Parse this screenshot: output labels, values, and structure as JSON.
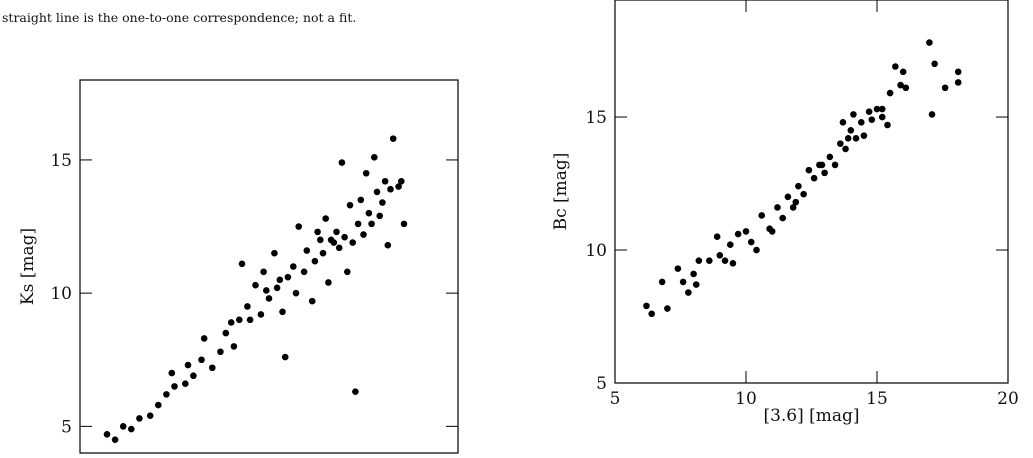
{
  "caption": "straight line is the one-to-one correspondence; not a fit.",
  "chart_data": [
    {
      "type": "scatter",
      "ylabel": "Ks [mag]",
      "color": "#000000",
      "xlim": [
        4,
        18
      ],
      "ylim": [
        4,
        18
      ],
      "yticks": [
        5,
        10,
        15
      ],
      "x": [
        5.0,
        5.3,
        5.6,
        5.9,
        6.2,
        6.6,
        6.9,
        7.2,
        7.5,
        7.4,
        7.9,
        8.2,
        8.5,
        8.6,
        8.9,
        9.2,
        9.4,
        9.7,
        9.9,
        10.0,
        10.2,
        10.3,
        10.5,
        10.7,
        10.8,
        11.0,
        11.2,
        11.3,
        11.5,
        11.6,
        11.7,
        11.9,
        12.0,
        12.1,
        12.3,
        12.4,
        12.6,
        12.7,
        12.9,
        13.0,
        13.1,
        13.2,
        13.4,
        13.5,
        13.6,
        13.7,
        13.8,
        13.9,
        14.0,
        14.1,
        14.2,
        14.3,
        14.4,
        14.5,
        14.6,
        14.7,
        14.8,
        14.9,
        15.0,
        15.1,
        15.2,
        15.3,
        15.4,
        15.5,
        15.6,
        15.8,
        15.9,
        16.0,
        12.8,
        13.3,
        11.4,
        10.9,
        9.6,
        8.0
      ],
      "values": [
        4.7,
        4.5,
        5.0,
        4.9,
        5.3,
        5.4,
        5.8,
        6.2,
        6.5,
        7.0,
        6.6,
        6.9,
        7.5,
        8.3,
        7.2,
        7.8,
        8.5,
        8.0,
        9.0,
        11.1,
        9.5,
        9.0,
        10.3,
        9.2,
        10.8,
        9.8,
        11.5,
        10.2,
        9.3,
        7.6,
        10.6,
        11.0,
        10.0,
        12.5,
        10.8,
        11.6,
        9.7,
        11.2,
        12.0,
        11.5,
        12.8,
        10.4,
        11.9,
        12.3,
        11.7,
        14.9,
        12.1,
        10.8,
        13.3,
        11.9,
        6.3,
        12.6,
        13.5,
        12.2,
        14.5,
        13.0,
        12.6,
        15.1,
        13.8,
        12.9,
        13.4,
        14.2,
        11.8,
        13.9,
        15.8,
        14.0,
        14.2,
        12.6,
        12.3,
        12.0,
        10.5,
        10.1,
        8.9,
        7.3
      ]
    },
    {
      "type": "scatter",
      "xlabel": "[3.6] [mag]",
      "ylabel": "Bc [mag]",
      "color": "#000000",
      "xlim": [
        5,
        20
      ],
      "ylim": [
        5,
        19.4
      ],
      "xticks": [
        5,
        10,
        15,
        20
      ],
      "yticks": [
        5,
        10,
        15
      ],
      "x": [
        6.2,
        6.4,
        6.8,
        7.0,
        7.4,
        7.6,
        7.8,
        8.0,
        8.1,
        8.2,
        8.6,
        8.9,
        9.0,
        9.2,
        9.4,
        9.5,
        9.7,
        10.0,
        10.2,
        10.4,
        10.6,
        10.9,
        11.0,
        11.2,
        11.4,
        11.6,
        11.8,
        12.0,
        12.2,
        12.4,
        12.6,
        12.8,
        13.0,
        13.2,
        13.4,
        13.6,
        13.7,
        13.8,
        14.0,
        14.1,
        14.2,
        14.4,
        14.5,
        14.7,
        14.8,
        15.0,
        15.2,
        15.4,
        15.5,
        15.7,
        15.9,
        16.0,
        15.2,
        13.9,
        17.0,
        17.2,
        17.1,
        17.6,
        18.1,
        18.1,
        12.9,
        11.9,
        16.1
      ],
      "values": [
        7.9,
        7.6,
        8.8,
        7.8,
        9.3,
        8.8,
        8.4,
        9.1,
        8.7,
        9.6,
        9.6,
        10.5,
        9.8,
        9.6,
        10.2,
        9.5,
        10.6,
        10.7,
        10.3,
        10.0,
        11.3,
        10.8,
        10.7,
        11.6,
        11.2,
        12.0,
        11.6,
        12.4,
        12.1,
        13.0,
        12.7,
        13.2,
        12.9,
        13.5,
        13.2,
        14.0,
        14.8,
        13.8,
        14.5,
        15.1,
        14.2,
        14.8,
        14.3,
        15.2,
        14.9,
        15.3,
        15.0,
        14.7,
        15.9,
        16.9,
        16.2,
        16.7,
        15.3,
        14.2,
        17.8,
        17.0,
        15.1,
        16.1,
        16.7,
        16.3,
        13.2,
        11.8,
        16.1
      ]
    }
  ]
}
